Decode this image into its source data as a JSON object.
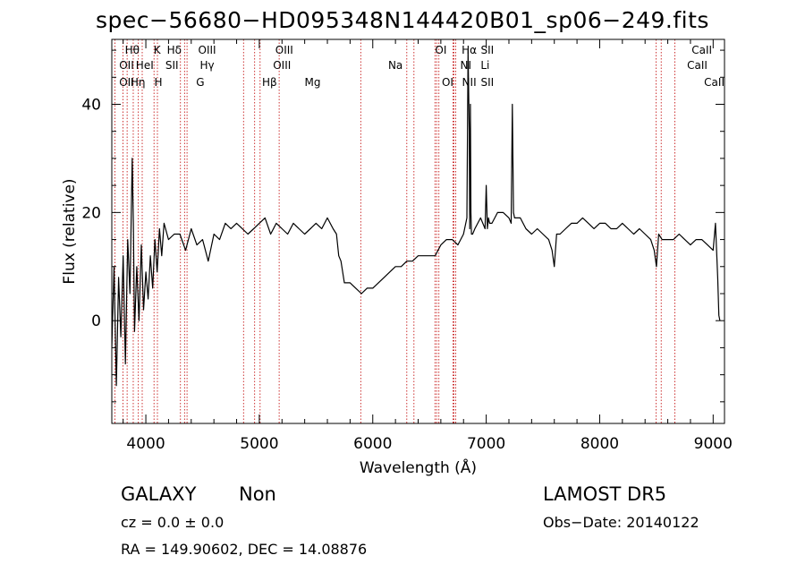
{
  "chart_data": {
    "type": "line",
    "title": "spec−56680−HD095348N144420B01_sp06−249.fits",
    "xlabel": "Wavelength (Å)",
    "ylabel": "Flux (relative)",
    "xlim": [
      3700,
      9100
    ],
    "ylim": [
      -19,
      52
    ],
    "xticks": [
      4000,
      5000,
      6000,
      7000,
      8000,
      9000
    ],
    "yticks": [
      0,
      20,
      40
    ],
    "grid": false,
    "series": [
      {
        "x": [
          3700,
          3720,
          3740,
          3760,
          3780,
          3800,
          3820,
          3840,
          3860,
          3880,
          3890,
          3900,
          3920,
          3940,
          3960,
          3980,
          4000,
          4020,
          4040,
          4060,
          4080,
          4100,
          4120,
          4140,
          4160,
          4200,
          4250,
          4300,
          4350,
          4400,
          4450,
          4500,
          4550,
          4600,
          4650,
          4700,
          4750,
          4800,
          4850,
          4900,
          4950,
          5000,
          5050,
          5100,
          5150,
          5200,
          5250,
          5300,
          5350,
          5400,
          5450,
          5500,
          5550,
          5600,
          5650,
          5680,
          5700,
          5720,
          5750,
          5800,
          5850,
          5900,
          5950,
          6000,
          6050,
          6100,
          6150,
          6200,
          6250,
          6300,
          6350,
          6400,
          6450,
          6500,
          6550,
          6600,
          6650,
          6700,
          6750,
          6800,
          6830,
          6840,
          6850,
          6855,
          6860,
          6865,
          6870,
          6880,
          6900,
          6950,
          6990,
          7000,
          7010,
          7020,
          7030,
          7050,
          7100,
          7150,
          7200,
          7220,
          7230,
          7240,
          7250,
          7300,
          7350,
          7400,
          7450,
          7500,
          7550,
          7580,
          7600,
          7620,
          7650,
          7700,
          7750,
          7800,
          7850,
          7900,
          7950,
          8000,
          8050,
          8100,
          8150,
          8200,
          8250,
          8300,
          8350,
          8400,
          8450,
          8480,
          8500,
          8520,
          8550,
          8600,
          8650,
          8700,
          8750,
          8800,
          8850,
          8900,
          8950,
          9000,
          9020,
          9040,
          9050,
          9060
        ],
        "y": [
          -5,
          10,
          -12,
          8,
          -3,
          12,
          -8,
          15,
          5,
          30,
          18,
          -2,
          10,
          0,
          14,
          2,
          9,
          4,
          12,
          6,
          15,
          9,
          17,
          12,
          18,
          15,
          16,
          16,
          13,
          17,
          14,
          15,
          11,
          16,
          15,
          18,
          17,
          18,
          17,
          16,
          17,
          18,
          19,
          16,
          18,
          17,
          16,
          18,
          17,
          16,
          17,
          18,
          17,
          19,
          17,
          16,
          12,
          11,
          7,
          7,
          6,
          5,
          6,
          6,
          7,
          8,
          9,
          10,
          10,
          11,
          11,
          12,
          12,
          12,
          12,
          14,
          15,
          15,
          14,
          16,
          19,
          50,
          35,
          17,
          40,
          20,
          16,
          16,
          17,
          19,
          17,
          25,
          17,
          19,
          18,
          18,
          20,
          20,
          19,
          18,
          40,
          20,
          19,
          19,
          17,
          16,
          17,
          16,
          15,
          13,
          10,
          16,
          16,
          17,
          18,
          18,
          19,
          18,
          17,
          18,
          18,
          17,
          17,
          18,
          17,
          16,
          17,
          16,
          15,
          13,
          10,
          16,
          15,
          15,
          15,
          16,
          15,
          14,
          15,
          15,
          14,
          13,
          18,
          8,
          1,
          0
        ]
      }
    ],
    "lines": [
      {
        "name": "OII",
        "x": 3727
      },
      {
        "name": "Hθ",
        "x": 3798
      },
      {
        "name": "Hη",
        "x": 3835
      },
      {
        "name": "HeI",
        "x": 3889
      },
      {
        "name": "K",
        "x": 3934
      },
      {
        "name": "H",
        "x": 3968
      },
      {
        "name": "Hδ",
        "x": 4102
      },
      {
        "name": "SII",
        "x": 4072
      },
      {
        "name": "G",
        "x": 4305
      },
      {
        "name": "Hγ",
        "x": 4341
      },
      {
        "name": "OIII",
        "x": 4363
      },
      {
        "name": "Hβ",
        "x": 4861
      },
      {
        "name": "OIII",
        "x": 4959
      },
      {
        "name": "OIII",
        "x": 5007
      },
      {
        "name": "Mg",
        "x": 5175
      },
      {
        "name": "Na",
        "x": 5894
      },
      {
        "name": "OI",
        "x": 6300
      },
      {
        "name": "OI",
        "x": 6363
      },
      {
        "name": "NII",
        "x": 6548
      },
      {
        "name": "Hα",
        "x": 6563
      },
      {
        "name": "NII",
        "x": 6583
      },
      {
        "name": "Li",
        "x": 6707
      },
      {
        "name": "SII",
        "x": 6716
      },
      {
        "name": "SII",
        "x": 6731
      },
      {
        "name": "CaII",
        "x": 8498
      },
      {
        "name": "CaII",
        "x": 8542
      },
      {
        "name": "CaII",
        "x": 8662
      }
    ],
    "line_marks": [
      {
        "text": "Hθ",
        "x": 3880,
        "row": 0
      },
      {
        "text": "K",
        "x": 4100,
        "row": 0
      },
      {
        "text": "Hδ",
        "x": 4250,
        "row": 0
      },
      {
        "text": "OIII",
        "x": 4540,
        "row": 0
      },
      {
        "text": "OIII",
        "x": 5220,
        "row": 0
      },
      {
        "text": "OI",
        "x": 6600,
        "row": 0
      },
      {
        "text": "Hα",
        "x": 6850,
        "row": 0
      },
      {
        "text": "SII",
        "x": 7010,
        "row": 0
      },
      {
        "text": "CaII",
        "x": 8900,
        "row": 0
      },
      {
        "text": "OII",
        "x": 3830,
        "row": 1
      },
      {
        "text": "HeI",
        "x": 3990,
        "row": 1
      },
      {
        "text": "SII",
        "x": 4230,
        "row": 1
      },
      {
        "text": "Hγ",
        "x": 4540,
        "row": 1
      },
      {
        "text": "OIII",
        "x": 5200,
        "row": 1
      },
      {
        "text": "Na",
        "x": 6200,
        "row": 1
      },
      {
        "text": "NI",
        "x": 6820,
        "row": 1
      },
      {
        "text": "Li",
        "x": 6990,
        "row": 1
      },
      {
        "text": "CaII",
        "x": 8860,
        "row": 1
      },
      {
        "text": "OII",
        "x": 3830,
        "row": 2
      },
      {
        "text": "Hη",
        "x": 3930,
        "row": 2
      },
      {
        "text": "H",
        "x": 4110,
        "row": 2
      },
      {
        "text": "G",
        "x": 4480,
        "row": 2
      },
      {
        "text": "Hβ",
        "x": 5090,
        "row": 2
      },
      {
        "text": "Mg",
        "x": 5470,
        "row": 2
      },
      {
        "text": "OI",
        "x": 6660,
        "row": 2
      },
      {
        "text": "NII",
        "x": 6850,
        "row": 2
      },
      {
        "text": "SII",
        "x": 7010,
        "row": 2
      },
      {
        "text": "CaII",
        "x": 9010,
        "row": 2
      }
    ],
    "line_color": "#c00000",
    "curve_color": "#000000"
  },
  "footer": {
    "object_class": "GALAXY",
    "subclass": "Non",
    "survey": "LAMOST DR5",
    "cz": "cz = 0.0 ± 0.0",
    "obs_date": "Obs−Date: 20140122",
    "radec": "RA = 149.90602, DEC =  14.08876"
  }
}
